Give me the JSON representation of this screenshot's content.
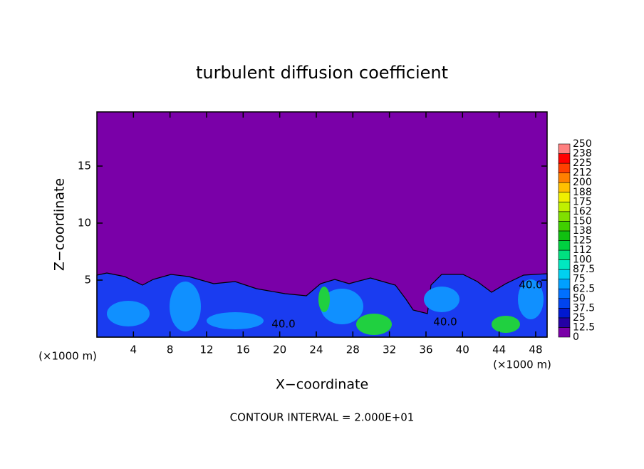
{
  "chart_data": {
    "type": "contour",
    "title": "turbulent diffusion coefficient",
    "x_label": "X−coordinate",
    "y_label": "Z−coordinate",
    "x_unit_left": "(×1000 m)",
    "x_unit_right": "(×1000 m)",
    "footnote": "CONTOUR INTERVAL = 2.000E+01",
    "xlim": [
      0,
      49.25
    ],
    "xticks": [
      4,
      8,
      12,
      16,
      20,
      24,
      28,
      32,
      36,
      40,
      44,
      48
    ],
    "ylim": [
      0,
      19.75
    ],
    "yticks": [
      5,
      10,
      15
    ],
    "colorbar_levels": [
      0,
      12.5,
      25,
      37.5,
      50,
      62.5,
      75,
      87.5,
      100,
      112,
      125,
      138,
      150,
      162,
      175,
      188,
      200,
      212,
      225,
      238,
      250
    ],
    "colorbar_colors": [
      "#7a00a8",
      "#2400a4",
      "#0018d0",
      "#0044f0",
      "#0070ff",
      "#00a0ff",
      "#00d0f0",
      "#00e8c0",
      "#00e080",
      "#00d040",
      "#10c010",
      "#40d000",
      "#80e000",
      "#c0f000",
      "#f0f000",
      "#ffc000",
      "#ff8000",
      "#ff4000",
      "#ff0000",
      "#ff8080"
    ],
    "contour_labels": [
      "40.0",
      "40.0",
      "40.0"
    ]
  }
}
